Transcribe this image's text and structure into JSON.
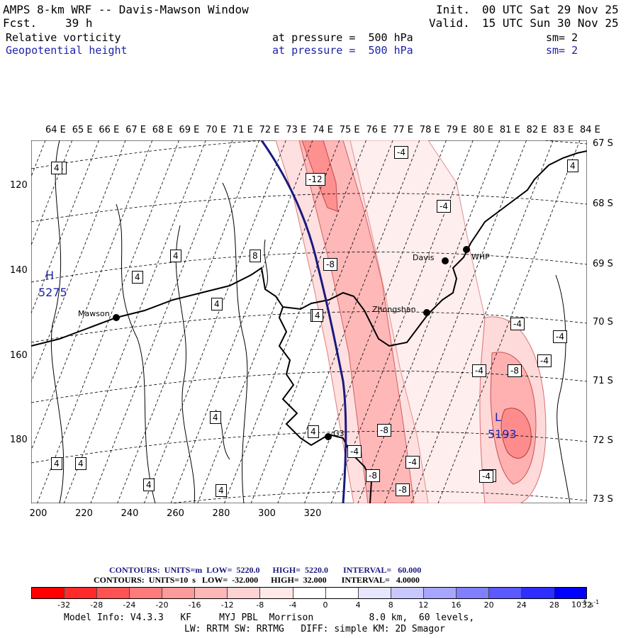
{
  "header": {
    "title": "AMPS 8-km WRF -- Davis-Mawson Window",
    "fcst_label": "Fcst.",
    "fcst_value": "39 h",
    "init_label": "Init.",
    "init_value": "00 UTC Sat 29 Nov 25",
    "valid_label": "Valid.",
    "valid_value": "15 UTC Sun 30 Nov 25",
    "field1_name": "Relative vorticity",
    "field1_level": "at pressure =  500 hPa",
    "field1_sm": "sm= 2",
    "field2_name": "Geopotential height",
    "field2_level": "at pressure =  500 hPa",
    "field2_sm": "sm= 2"
  },
  "axes": {
    "top_lon_labels": [
      "64 E",
      "65 E",
      "66 E",
      "67 E",
      "68 E",
      "69 E",
      "70 E",
      "71 E",
      "72 E",
      "73 E",
      "74 E",
      "75 E",
      "76 E",
      "77 E",
      "78 E",
      "79 E",
      "80 E",
      "81 E",
      "82 E",
      "83 E",
      "84 E"
    ],
    "right_lat_labels": [
      "67 S",
      "68 S",
      "69 S",
      "70 S",
      "71 S",
      "72 S",
      "73 S"
    ],
    "left_y_ticks": [
      "120",
      "140",
      "160",
      "180"
    ],
    "bottom_x_ticks": [
      "200",
      "220",
      "240",
      "260",
      "280",
      "300",
      "320"
    ]
  },
  "map": {
    "stations": [
      {
        "name": "Mawson"
      },
      {
        "name": "Davis"
      },
      {
        "name": "WHP"
      },
      {
        "name": "Zhongshan"
      },
      {
        "name": "G3"
      }
    ],
    "high_letter": "H",
    "high_value": "5275",
    "low_letter": "L",
    "low_value": "5193",
    "contour_labels": [
      "4",
      "4",
      "4",
      "4",
      "8",
      "4",
      "4",
      "4",
      "4",
      "4",
      "4",
      "4",
      "4",
      "4",
      "4",
      "-12",
      "-8",
      "-4",
      "-4",
      "-4",
      "-4",
      "-8",
      "-4",
      "-4",
      "-8",
      "-8",
      "-4",
      "-8",
      "-4",
      "-8",
      "-4"
    ]
  },
  "footer": {
    "contours1": "CONTOURS:  UNITS=m  LOW=  5220.0      HIGH=  5220.0       INTERVAL=   60.000",
    "contours2": "CONTOURS:  UNITS=10  s   LOW=  -32.000      HIGH=  32.000       INTERVAL=   4.0000",
    "colorbar_labels": [
      "-32",
      "-28",
      "-24",
      "-20",
      "-16",
      "-12",
      "-8",
      "-4",
      "0",
      "4",
      "8",
      "12",
      "16",
      "20",
      "24",
      "28",
      "32"
    ],
    "colorbar_units": "10",
    "colorbar_colors": [
      "#ff0000",
      "#ff2a2a",
      "#ff5353",
      "#ff7b7b",
      "#ff9a9a",
      "#ffb7b7",
      "#ffd2d2",
      "#ffe8e8",
      "#ffffff",
      "#ffffff",
      "#e6e6ff",
      "#c8c8ff",
      "#a6a6ff",
      "#8080ff",
      "#5a5aff",
      "#2e2eff",
      "#0000ff"
    ],
    "model_info": "Model Info: V4.3.3   KF     MYJ PBL  Morrison          8.0 km,  60 levels,",
    "model_info2": "LW: RRTM SW: RRTMG   DIFF: simple KM: 2D Smagor"
  }
}
